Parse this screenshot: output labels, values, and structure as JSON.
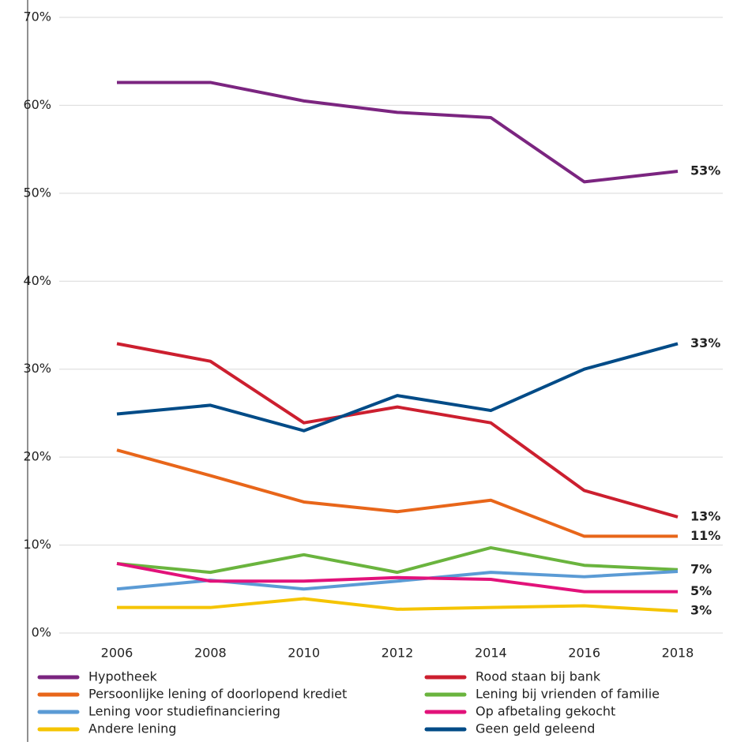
{
  "chart_data": {
    "type": "line",
    "x": [
      2006,
      2008,
      2010,
      2012,
      2014,
      2016,
      2018
    ],
    "ylim": [
      0,
      70
    ],
    "yticks": [
      {
        "value": 0,
        "label": "0%"
      },
      {
        "value": 10,
        "label": "10%"
      },
      {
        "value": 20,
        "label": "20%"
      },
      {
        "value": 30,
        "label": "30%"
      },
      {
        "value": 40,
        "label": "40%"
      },
      {
        "value": 50,
        "label": "50%"
      },
      {
        "value": 60,
        "label": "60%"
      },
      {
        "value": 70,
        "label": "70%"
      }
    ],
    "grid": true,
    "legend": "bottom",
    "series": [
      {
        "name": "Hypotheek",
        "color": "#7b2580",
        "values": [
          62.6,
          62.6,
          60.5,
          59.2,
          58.6,
          51.3,
          52.5
        ],
        "value_labels": [
          null,
          null,
          null,
          null,
          null,
          null,
          "53%"
        ]
      },
      {
        "name": "Rood staan bij bank",
        "color": "#cc1f2f",
        "values": [
          32.9,
          30.9,
          23.9,
          25.7,
          23.9,
          16.2,
          13.2
        ],
        "value_labels": [
          null,
          null,
          null,
          null,
          null,
          null,
          "13%"
        ]
      },
      {
        "name": "Persoonlijke lening of doorlopend krediet",
        "color": "#e8661a",
        "values": [
          20.8,
          17.9,
          14.9,
          13.8,
          15.1,
          11.0,
          11.0
        ],
        "value_labels": [
          null,
          null,
          null,
          null,
          null,
          null,
          "11%"
        ]
      },
      {
        "name": "Lening bij vrienden of familie",
        "color": "#6ab43e",
        "values": [
          7.9,
          6.9,
          8.9,
          6.9,
          9.7,
          7.7,
          7.2
        ],
        "value_labels": [
          null,
          null,
          null,
          null,
          null,
          null,
          "7%"
        ]
      },
      {
        "name": "Lening voor studiefinanciering",
        "color": "#5b9bd5",
        "values": [
          5.0,
          6.0,
          5.0,
          5.9,
          6.9,
          6.4,
          7.0
        ]
      },
      {
        "name": "Op afbetaling gekocht",
        "color": "#e2127a",
        "values": [
          7.9,
          5.9,
          5.9,
          6.3,
          6.1,
          4.7,
          4.7
        ],
        "value_labels": [
          null,
          null,
          null,
          null,
          null,
          null,
          "5%"
        ]
      },
      {
        "name": "Andere lening",
        "color": "#f5c400",
        "values": [
          2.9,
          2.9,
          3.9,
          2.7,
          2.9,
          3.1,
          2.5
        ],
        "value_labels": [
          null,
          null,
          null,
          null,
          null,
          null,
          "3%"
        ]
      },
      {
        "name": "Geen geld geleend",
        "color": "#004b87",
        "values": [
          24.9,
          25.9,
          23.0,
          27.0,
          25.3,
          30.0,
          32.9
        ],
        "value_labels": [
          null,
          null,
          null,
          null,
          null,
          null,
          "33%"
        ]
      }
    ]
  }
}
